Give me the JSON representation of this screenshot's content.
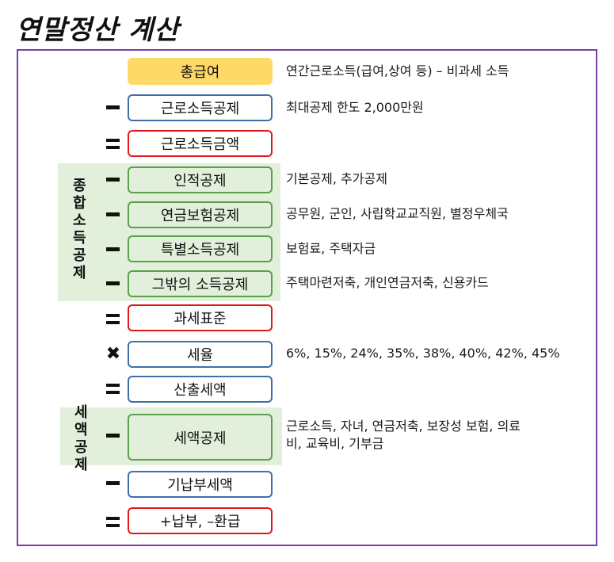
{
  "title": "연말정산 계산",
  "groups": {
    "comprehensive": [
      "종",
      "합",
      "소",
      "득",
      "공",
      "제"
    ],
    "tax_credit": [
      "세",
      "액",
      "공",
      "제"
    ]
  },
  "rows": [
    {
      "label": "총급여",
      "desc": "연간근로소득(급여,상여 등) – 비과세 소득"
    },
    {
      "label": "근로소득공제",
      "desc": "최대공제 한도 2,000만원"
    },
    {
      "label": "근로소득금액",
      "desc": ""
    },
    {
      "label": "인적공제",
      "desc": "기본공제, 추가공제"
    },
    {
      "label": "연금보험공제",
      "desc": "공무원, 군인, 사립학교교직원, 별정우체국"
    },
    {
      "label": "특별소득공제",
      "desc": "보험료, 주택자금"
    },
    {
      "label": "그밖의 소득공제",
      "desc": "주택마련저축, 개인연금저축, 신용카드"
    },
    {
      "label": "과세표준",
      "desc": ""
    },
    {
      "label": "세율",
      "desc": "6%, 15%, 24%, 35%, 38%, 40%, 42%, 45%"
    },
    {
      "label": "산출세액",
      "desc": ""
    },
    {
      "label": "세액공제",
      "desc_line1": "근로소득, 자녀, 연금저축, 보장성 보험, 의료",
      "desc_line2": "비, 교육비, 기부금"
    },
    {
      "label": "기납부세액",
      "desc": ""
    },
    {
      "label": "+납부, –환급",
      "desc": ""
    }
  ],
  "colors": {
    "frame": "#7a3fa2",
    "orange": "#ffd966",
    "blue_border": "#3e6fa8",
    "red_border": "#e01818",
    "green_border": "#5aa04e",
    "green_fill": "#e2efda"
  }
}
